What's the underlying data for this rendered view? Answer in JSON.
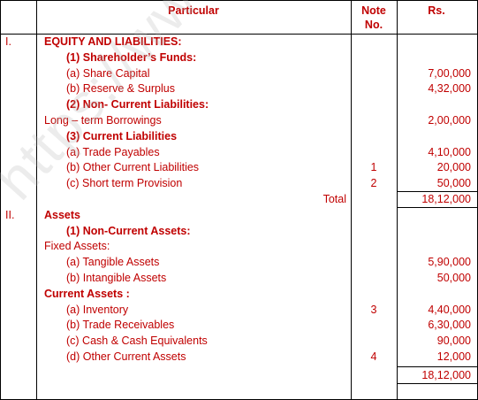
{
  "header": {
    "particular": "Particular",
    "note_line1": "Note",
    "note_line2": "No.",
    "amount": "Rs."
  },
  "rows": [
    {
      "num": "I.",
      "text": "EQUITY AND LIABILITIES:",
      "indent": 0,
      "bold": true,
      "note": "",
      "amount": ""
    },
    {
      "num": "",
      "text": "(1)  Shareholder’s Funds:",
      "indent": 2,
      "bold": true,
      "note": "",
      "amount": ""
    },
    {
      "num": "",
      "text": "(a)  Share Capital",
      "indent": 2,
      "bold": false,
      "note": "",
      "amount": "7,00,000"
    },
    {
      "num": "",
      "text": "(b)  Reserve & Surplus",
      "indent": 2,
      "bold": false,
      "note": "",
      "amount": "4,32,000"
    },
    {
      "num": "",
      "text": "(2)  Non- Current Liabilities:",
      "indent": 2,
      "bold": true,
      "note": "",
      "amount": ""
    },
    {
      "num": "",
      "text": "Long – term Borrowings",
      "indent": 0,
      "bold": false,
      "note": "",
      "amount": "2,00,000"
    },
    {
      "num": "",
      "text": "(3)  Current Liabilities",
      "indent": 2,
      "bold": true,
      "note": "",
      "amount": ""
    },
    {
      "num": "",
      "text": "(a)  Trade Payables",
      "indent": 2,
      "bold": false,
      "note": "",
      "amount": "4,10,000"
    },
    {
      "num": "",
      "text": "(b)  Other Current Liabilities",
      "indent": 2,
      "bold": false,
      "note": "1",
      "amount": "20,000"
    },
    {
      "num": "",
      "text": "(c)  Short term Provision",
      "indent": 2,
      "bold": false,
      "note": "2",
      "amount": "50,000"
    },
    {
      "num": "",
      "text": "Total",
      "indent": 0,
      "bold": false,
      "note": "",
      "amount": "18,12,000",
      "is_total": true
    },
    {
      "num": "II.",
      "text": "Assets",
      "indent": 0,
      "bold": true,
      "note": "",
      "amount": ""
    },
    {
      "num": "",
      "text": "(1)  Non-Current Assets:",
      "indent": 2,
      "bold": true,
      "note": "",
      "amount": ""
    },
    {
      "num": "",
      "text": "Fixed Assets:",
      "indent": 0,
      "bold": false,
      "note": "",
      "amount": ""
    },
    {
      "num": "",
      "text": "(a)  Tangible Assets",
      "indent": 2,
      "bold": false,
      "note": "",
      "amount": "5,90,000"
    },
    {
      "num": "",
      "text": "(b)  Intangible Assets",
      "indent": 2,
      "bold": false,
      "note": "",
      "amount": "50,000"
    },
    {
      "num": "",
      "text": "Current Assets :",
      "indent": 0,
      "bold": true,
      "note": "",
      "amount": ""
    },
    {
      "num": "",
      "text": "(a)  Inventory",
      "indent": 2,
      "bold": false,
      "note": "3",
      "amount": "4,40,000"
    },
    {
      "num": "",
      "text": "(b)  Trade Receivables",
      "indent": 2,
      "bold": false,
      "note": "",
      "amount": "6,30,000"
    },
    {
      "num": "",
      "text": "(c)  Cash & Cash Equivalents",
      "indent": 2,
      "bold": false,
      "note": "",
      "amount": "90,000"
    },
    {
      "num": "",
      "text": "(d)  Other Current Assets",
      "indent": 2,
      "bold": false,
      "note": "4",
      "amount": "12,000"
    }
  ],
  "final_total": "18,12,000",
  "watermark": "https://www.studiestoday"
}
